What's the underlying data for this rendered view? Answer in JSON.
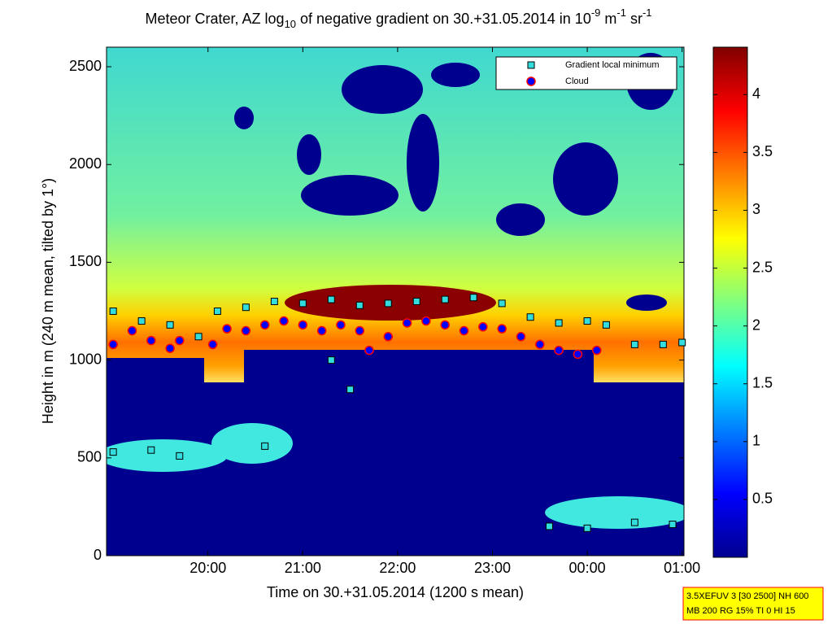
{
  "chart_data": {
    "type": "scatter",
    "title": [
      "Meteor Crater, AZ log",
      "10",
      " of negative gradient on 30.+31.05.2014 in 10",
      "-9",
      " m",
      "-1",
      " sr",
      "-1"
    ],
    "xlabel": "Time on 30.+31.05.2014 (1200 s mean)",
    "ylabel": "Height in m (240 m mean, tilted by 1°)",
    "xlim": [
      18.93,
      25.02
    ],
    "xticks": [
      {
        "value": 20,
        "label": "20:00"
      },
      {
        "value": 21,
        "label": "21:00"
      },
      {
        "value": 22,
        "label": "22:00"
      },
      {
        "value": 23,
        "label": "23:00"
      },
      {
        "value": 24,
        "label": "00:00"
      },
      {
        "value": 25,
        "label": "01:00"
      }
    ],
    "ylim": [
      0,
      2600
    ],
    "yticks": [
      0,
      500,
      1000,
      1500,
      2000,
      2500
    ],
    "clim": [
      0,
      4.41
    ],
    "cticks": [
      0.5,
      1,
      1.5,
      2,
      2.5,
      3,
      3.5,
      4
    ],
    "legend": "upper right",
    "series": [
      {
        "name": "Gradient local minimum",
        "color": "#33dddd",
        "marker": "square",
        "x": [
          19.0,
          19.3,
          19.6,
          19.9,
          20.1,
          20.4,
          20.7,
          21.0,
          21.3,
          21.6,
          21.9,
          22.2,
          22.5,
          22.8,
          23.1,
          23.4,
          23.7,
          24.0,
          24.2,
          24.5,
          24.8,
          25.0,
          19.0,
          19.4,
          19.7,
          20.6,
          23.6,
          24.0,
          24.5,
          24.9,
          21.3,
          21.5
        ],
        "values": [
          1250,
          1200,
          1180,
          1120,
          1250,
          1270,
          1300,
          1290,
          1310,
          1280,
          1290,
          1300,
          1310,
          1320,
          1290,
          1220,
          1190,
          1200,
          1180,
          1080,
          1080,
          1090,
          530,
          540,
          510,
          560,
          150,
          140,
          170,
          160,
          1000,
          850
        ]
      },
      {
        "name": "Cloud",
        "color": "#0000ff",
        "marker": "circle",
        "x": [
          19.0,
          19.2,
          19.4,
          19.6,
          19.7,
          20.05,
          20.2,
          20.4,
          20.6,
          20.8,
          21.0,
          21.2,
          21.4,
          21.6,
          21.7,
          21.9,
          22.1,
          22.3,
          22.5,
          22.7,
          22.9,
          23.1,
          23.3,
          23.5,
          23.7,
          23.9,
          24.1
        ],
        "values": [
          1080,
          1150,
          1100,
          1060,
          1100,
          1080,
          1160,
          1150,
          1180,
          1200,
          1180,
          1150,
          1180,
          1150,
          1050,
          1120,
          1190,
          1200,
          1180,
          1150,
          1170,
          1160,
          1120,
          1080,
          1050,
          1030,
          1050
        ]
      }
    ],
    "info": [
      "3.5XEFUV 3 [30 2500] NH 600",
      "MB 200 RG 15% TI 0 HI 15"
    ]
  }
}
